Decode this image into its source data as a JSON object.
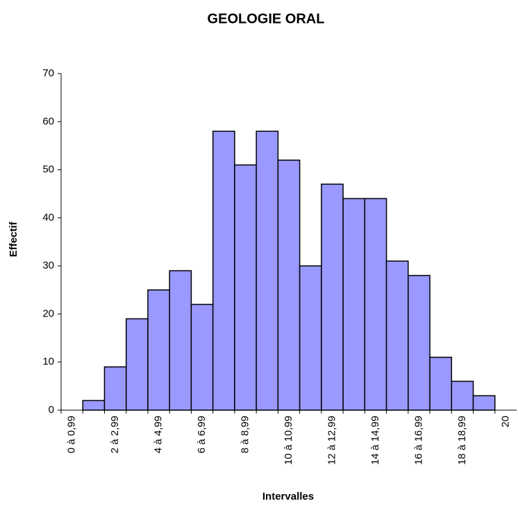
{
  "chart_data": {
    "type": "bar",
    "title": "GEOLOGIE ORAL",
    "x_label": "Intervalles",
    "y_label": "Effectif",
    "categories": [
      "0 à 0,99",
      null,
      "2 à 2,99",
      null,
      "4 à 4,99",
      null,
      "6 à 6,99",
      null,
      "8 à 8,99",
      null,
      "10 à 10,99",
      null,
      "12 à 12,99",
      null,
      "14 à 14,99",
      null,
      "16 à 16,99",
      null,
      "18 à 18,99",
      null,
      "20"
    ],
    "values": [
      0,
      2,
      9,
      19,
      25,
      29,
      22,
      58,
      51,
      58,
      52,
      30,
      47,
      44,
      44,
      31,
      28,
      11,
      6,
      3,
      0
    ],
    "color": "#9999ff",
    "ylim": [
      0,
      70
    ],
    "yticks": [
      0,
      10,
      20,
      30,
      40,
      50,
      60,
      70
    ],
    "grid": false
  }
}
